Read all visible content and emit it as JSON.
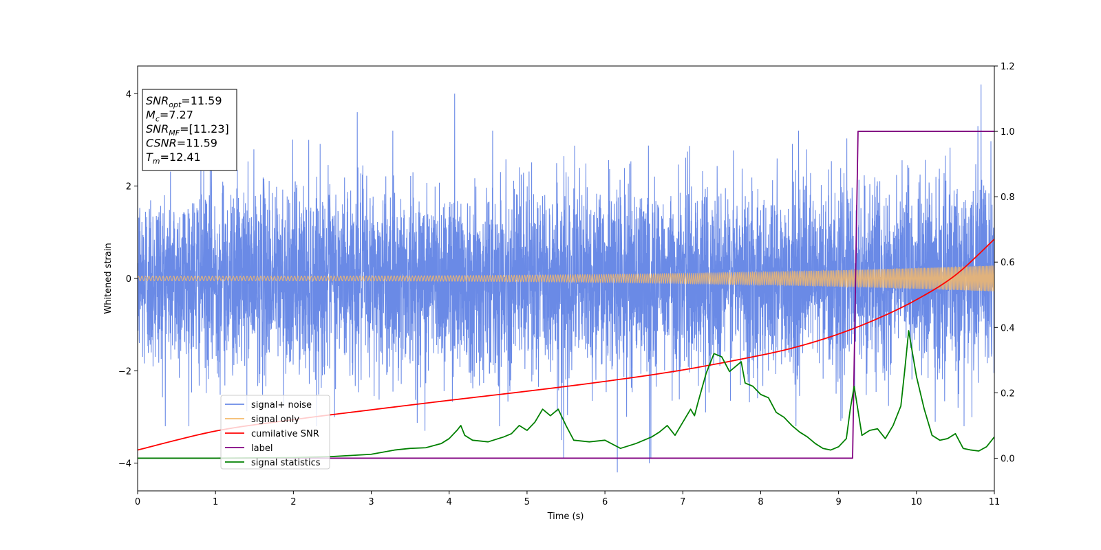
{
  "chart_data": {
    "type": "line",
    "xlabel": "Time (s)",
    "ylabel": "Whitened strain",
    "xlim": [
      0,
      11
    ],
    "ylim": [
      -4.6,
      4.6
    ],
    "y2lim": [
      -0.1,
      1.2
    ],
    "x_ticks": [
      0,
      1,
      2,
      3,
      4,
      5,
      6,
      7,
      8,
      9,
      10,
      11
    ],
    "y_ticks": [
      -4,
      -2,
      0,
      2,
      4
    ],
    "y2_ticks": [
      "0.0",
      "0.2",
      "0.4",
      "0.6",
      "0.8",
      "1.0",
      "1.2"
    ],
    "legend_placement": "lower-left",
    "grid": false,
    "annotation": [
      {
        "main": "SNR",
        "sub": "opt",
        "rest": "=11.59"
      },
      {
        "main": "M",
        "sub": "c",
        "rest": "=7.27"
      },
      {
        "main": "SNR",
        "sub": "MF",
        "rest": "=[11.23]"
      },
      {
        "main": "CSNR",
        "sub": "",
        "rest": "=11.59"
      },
      {
        "main": "T",
        "sub": "m",
        "rest": "=12.41"
      }
    ],
    "series": [
      {
        "name": "signal+ noise",
        "axis": "left",
        "color": "#6a8ae6",
        "noise_std": 1.0,
        "outliers": [
          [
            3.69,
            -3.3
          ],
          [
            4.07,
            4.0
          ],
          [
            5.44,
            -3.5
          ],
          [
            5.47,
            -3.9
          ],
          [
            6.16,
            -4.2
          ],
          [
            6.57,
            -4.0
          ],
          [
            6.59,
            -3.9
          ],
          [
            10.83,
            4.2
          ],
          [
            2.82,
            3.6
          ],
          [
            10.79,
            3.3
          ]
        ]
      },
      {
        "name": "signal only",
        "axis": "left",
        "color": "#f5b96a",
        "amplitude_start": 0.05,
        "amplitude_end": 0.28,
        "frequency_start": 22,
        "frequency_end": 60
      },
      {
        "name": "cumilative SNR",
        "axis": "right",
        "color": "#ff0000",
        "x": [
          0,
          1,
          2,
          3,
          4,
          5,
          6,
          7,
          8,
          8.5,
          9,
          9.5,
          10,
          10.5,
          11
        ],
        "y": [
          0.025,
          0.083,
          0.118,
          0.148,
          0.177,
          0.205,
          0.235,
          0.27,
          0.315,
          0.343,
          0.38,
          0.427,
          0.485,
          0.56,
          0.67
        ]
      },
      {
        "name": "label",
        "axis": "right",
        "color": "#800080",
        "x": [
          0,
          9.18,
          9.25,
          11
        ],
        "y": [
          0,
          0,
          1,
          1
        ]
      },
      {
        "name": "signal statistics",
        "axis": "right",
        "color": "#008000",
        "x": [
          0,
          1,
          2,
          2.5,
          3,
          3.3,
          3.5,
          3.7,
          3.9,
          4.0,
          4.1,
          4.15,
          4.2,
          4.3,
          4.5,
          4.7,
          4.8,
          4.9,
          5.0,
          5.1,
          5.2,
          5.3,
          5.4,
          5.5,
          5.6,
          5.8,
          6.0,
          6.2,
          6.4,
          6.6,
          6.7,
          6.8,
          6.9,
          7.0,
          7.1,
          7.15,
          7.2,
          7.3,
          7.4,
          7.5,
          7.6,
          7.7,
          7.75,
          7.8,
          7.9,
          8.0,
          8.1,
          8.2,
          8.3,
          8.4,
          8.5,
          8.6,
          8.7,
          8.8,
          8.9,
          9.0,
          9.1,
          9.15,
          9.2,
          9.3,
          9.4,
          9.5,
          9.6,
          9.7,
          9.8,
          9.85,
          9.9,
          10.0,
          10.1,
          10.2,
          10.3,
          10.4,
          10.5,
          10.6,
          10.7,
          10.8,
          10.9,
          11.0
        ],
        "y": [
          0.0,
          0.0,
          0.002,
          0.005,
          0.012,
          0.025,
          0.03,
          0.032,
          0.045,
          0.06,
          0.085,
          0.1,
          0.07,
          0.055,
          0.05,
          0.065,
          0.075,
          0.1,
          0.085,
          0.11,
          0.15,
          0.13,
          0.15,
          0.1,
          0.055,
          0.05,
          0.055,
          0.03,
          0.045,
          0.065,
          0.08,
          0.1,
          0.07,
          0.11,
          0.15,
          0.13,
          0.175,
          0.26,
          0.32,
          0.31,
          0.265,
          0.285,
          0.295,
          0.23,
          0.22,
          0.195,
          0.185,
          0.14,
          0.125,
          0.1,
          0.08,
          0.065,
          0.045,
          0.03,
          0.025,
          0.035,
          0.06,
          0.15,
          0.22,
          0.07,
          0.085,
          0.09,
          0.06,
          0.1,
          0.16,
          0.27,
          0.39,
          0.25,
          0.15,
          0.07,
          0.055,
          0.06,
          0.075,
          0.03,
          0.025,
          0.022,
          0.035,
          0.065
        ]
      }
    ]
  }
}
